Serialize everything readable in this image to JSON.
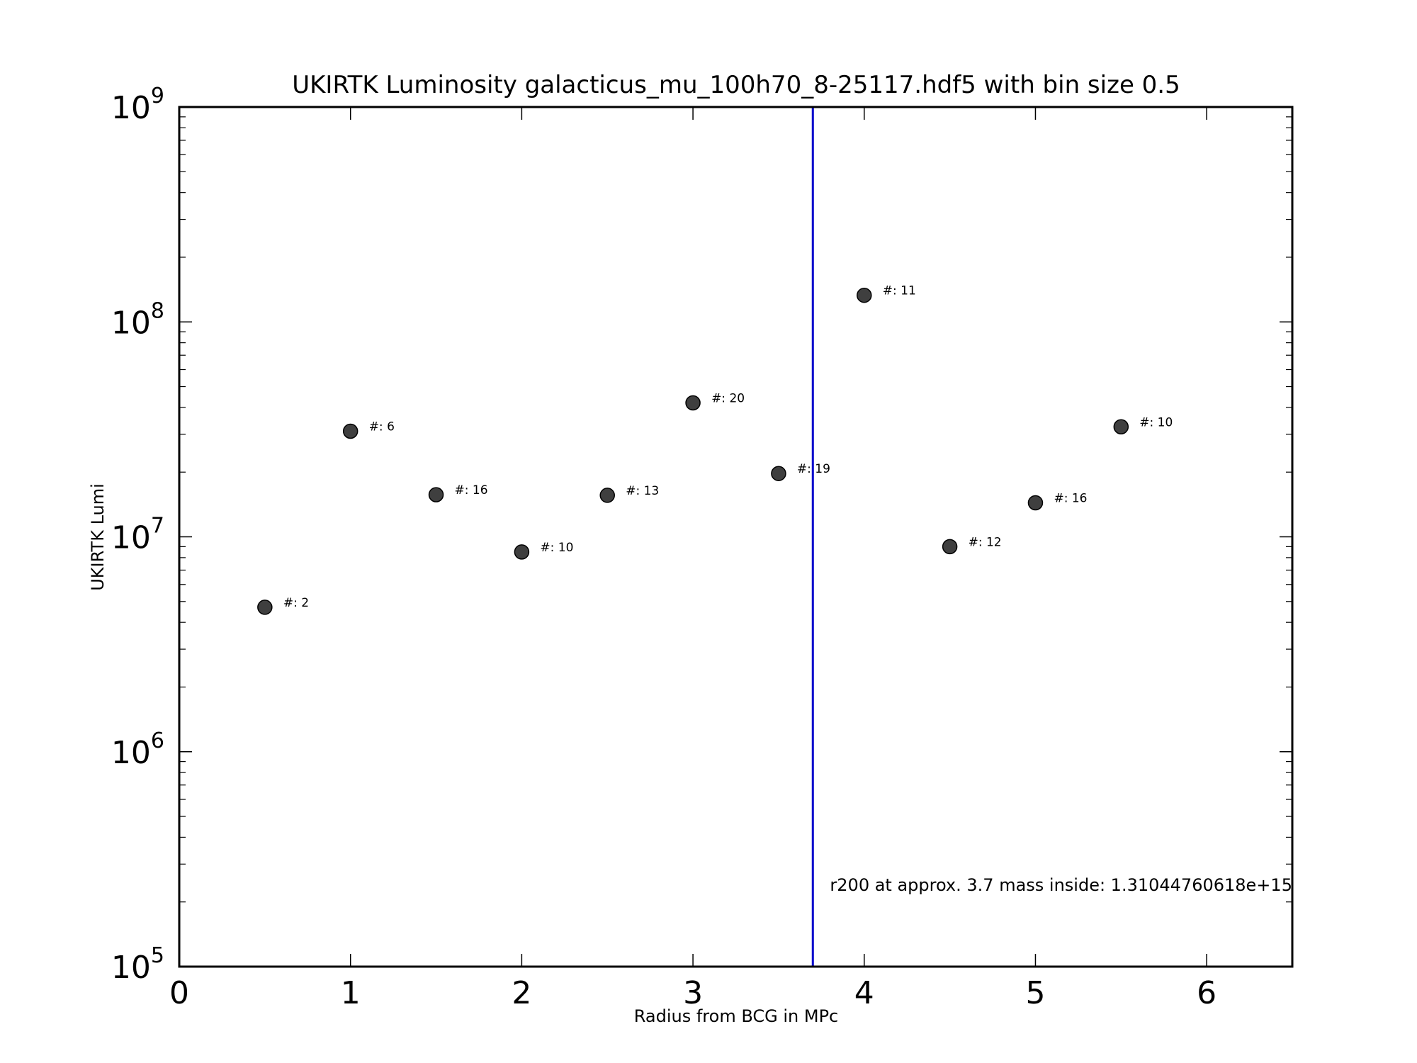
{
  "chart_data": {
    "type": "scatter",
    "title": "UKIRTK Luminosity galacticus_mu_100h70_8-25117.hdf5 with bin size 0.5",
    "xlabel": "Radius from BCG in MPc",
    "ylabel": "UKIRTK Lumi",
    "xlim": [
      0,
      6.5
    ],
    "ylim": [
      100000,
      1000000000
    ],
    "yscale": "log",
    "grid": false,
    "x_ticks": [
      "0",
      "1",
      "2",
      "3",
      "4",
      "5",
      "6"
    ],
    "y_ticks": [
      {
        "base": "10",
        "exp": "5"
      },
      {
        "base": "10",
        "exp": "6"
      },
      {
        "base": "10",
        "exp": "7"
      },
      {
        "base": "10",
        "exp": "8"
      },
      {
        "base": "10",
        "exp": "9"
      }
    ],
    "marker_color": "#3f3f3f",
    "points": [
      {
        "x": 0.5,
        "y": 4700000,
        "label": "#: 2"
      },
      {
        "x": 1.0,
        "y": 31000000,
        "label": "#: 6"
      },
      {
        "x": 1.5,
        "y": 15700000,
        "label": "#: 16"
      },
      {
        "x": 2.0,
        "y": 8500000,
        "label": "#: 10"
      },
      {
        "x": 2.5,
        "y": 15600000,
        "label": "#: 13"
      },
      {
        "x": 3.0,
        "y": 42000000,
        "label": "#: 20"
      },
      {
        "x": 3.5,
        "y": 19700000,
        "label": "#: 19"
      },
      {
        "x": 4.0,
        "y": 133000000,
        "label": "#: 11"
      },
      {
        "x": 4.5,
        "y": 9000000,
        "label": "#: 12"
      },
      {
        "x": 5.0,
        "y": 14400000,
        "label": "#: 16"
      },
      {
        "x": 5.5,
        "y": 32500000,
        "label": "#: 10"
      }
    ],
    "vline": {
      "x": 3.7,
      "color": "#0000cc"
    },
    "annotation": {
      "text": "r200 at approx. 3.7 mass inside: 1.31044760618e+15",
      "x": 3.8,
      "y": 220000
    }
  }
}
